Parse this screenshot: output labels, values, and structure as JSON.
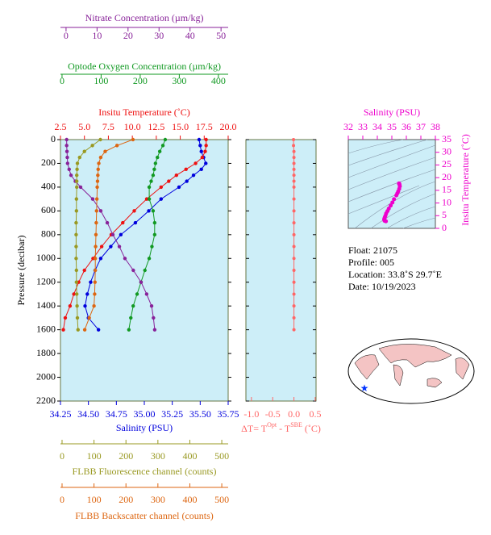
{
  "chart_data": [
    {
      "type": "profile",
      "ylabel": "Pressure (decibar)",
      "ylim": [
        0,
        2200
      ],
      "yticks": [
        0,
        200,
        400,
        600,
        800,
        1000,
        1200,
        1400,
        1600,
        1800,
        2000,
        2200
      ],
      "y_inverted": true,
      "pressure": [
        0,
        50,
        100,
        150,
        200,
        250,
        300,
        350,
        400,
        500,
        600,
        700,
        800,
        900,
        1000,
        1100,
        1200,
        1300,
        1400,
        1500,
        1600
      ],
      "series": [
        {
          "name": "Salinity (PSU)",
          "color": "#0000dd",
          "axis": "bottom",
          "xlim": [
            34.25,
            35.75
          ],
          "xticks": [
            34.25,
            {
              "value": 34.5,
              "label": "34.50"
            },
            34.75,
            {
              "value": 35,
              "label": "35.00"
            },
            35.25,
            {
              "value": 35.5,
              "label": "35.50"
            },
            35.75
          ],
          "values": [
            35.49,
            35.5,
            35.51,
            35.53,
            35.55,
            35.51,
            35.44,
            35.38,
            35.31,
            35.15,
            35.04,
            34.92,
            34.79,
            34.7,
            34.61,
            34.56,
            34.52,
            34.49,
            34.47,
            34.5,
            34.59
          ]
        },
        {
          "name": "Insitu Temperature (˚C)",
          "color": "#ee1111",
          "axis": "top",
          "xlim": [
            2.5,
            20
          ],
          "xticks": [
            2.5,
            {
              "value": 5,
              "label": "5.0"
            },
            7.5,
            {
              "value": 10,
              "label": "10.0"
            },
            12.5,
            {
              "value": 15,
              "label": "15.0"
            },
            17.5,
            {
              "value": 20,
              "label": "20.0"
            }
          ],
          "values": [
            17.7,
            17.7,
            17.6,
            17.3,
            16.6,
            15.6,
            14.6,
            13.8,
            13.0,
            11.5,
            10.2,
            9.0,
            7.8,
            6.8,
            5.9,
            5.0,
            4.4,
            3.9,
            3.5,
            3.0,
            2.8
          ]
        },
        {
          "name": "Optode Oxygen Concentration (µm/kg)",
          "color": "#119922",
          "axis": "top2",
          "xlim": [
            -4,
            425
          ],
          "xticks": [
            0,
            100,
            200,
            300,
            400
          ],
          "values": [
            264,
            258,
            250,
            244,
            239,
            236,
            233,
            228,
            223,
            223,
            233,
            237,
            237,
            230,
            223,
            212,
            202,
            192,
            182,
            176,
            171
          ]
        },
        {
          "name": "Nitrate Concentration (µm/kg)",
          "color": "#882299",
          "axis": "top3",
          "xlim": [
            -1.8,
            52.3
          ],
          "xticks": [
            0,
            10,
            20,
            30,
            40,
            50
          ],
          "values": [
            0.2,
            0.2,
            0.3,
            0.4,
            0.5,
            1.0,
            1.6,
            3.0,
            4.7,
            8.6,
            11.2,
            13.3,
            15.1,
            17.2,
            19.0,
            21.7,
            24.2,
            26.0,
            27.6,
            28.2,
            28.6
          ]
        },
        {
          "name": "FLBB Fluorescence channel (counts)",
          "color": "#999922",
          "axis": "bottom2",
          "xlim": [
            -5,
            520
          ],
          "xticks": [
            0,
            100,
            200,
            300,
            400,
            500
          ],
          "values": [
            120,
            95,
            70,
            55,
            48,
            47,
            46,
            46,
            46,
            45,
            45,
            44,
            44,
            44,
            44,
            45,
            45,
            46,
            47,
            48,
            50
          ]
        },
        {
          "name": "FLBB Backscatter channel (counts)",
          "color": "#dd6611",
          "axis": "bottom3",
          "xlim": [
            -5,
            520
          ],
          "xticks": [
            0,
            100,
            200,
            300,
            400,
            500
          ],
          "values": [
            222,
            172,
            135,
            121,
            115,
            113,
            112,
            111,
            110,
            109,
            108,
            107,
            106,
            105,
            104,
            104,
            103,
            102,
            100,
            85,
            71
          ]
        }
      ]
    },
    {
      "type": "delta",
      "xlabel": [
        "ΔT= T",
        "Opt",
        " - T",
        "SBE",
        " (˚C)"
      ],
      "color": "#ff6666",
      "xlim": [
        -1.13,
        0.52
      ],
      "xticks": [
        {
          "value": -1,
          "label": "-1.0"
        },
        -0.5,
        {
          "value": 0,
          "label": "0.0"
        },
        0.5
      ],
      "values": [
        -0.01,
        -0.01,
        0,
        0,
        0,
        0,
        0,
        0,
        0,
        0,
        0,
        0,
        0,
        0,
        0,
        0,
        0,
        0,
        0,
        0,
        0
      ]
    },
    {
      "type": "ts",
      "title": "Salinity (PSU)",
      "ylabel": "Insitu Temperature (˚C)",
      "color": "#ee00cc",
      "xlim": [
        32,
        38
      ],
      "xticks": [
        32,
        33,
        34,
        35,
        36,
        37,
        38
      ],
      "ylim": [
        0,
        35
      ],
      "yticks": [
        0,
        5,
        10,
        15,
        20,
        25,
        30,
        35
      ]
    }
  ],
  "info": [
    "Float:  21075",
    "Profile:  005",
    "Location:  33.8˚S  29.7˚E",
    "Date:  10/19/2023"
  ]
}
